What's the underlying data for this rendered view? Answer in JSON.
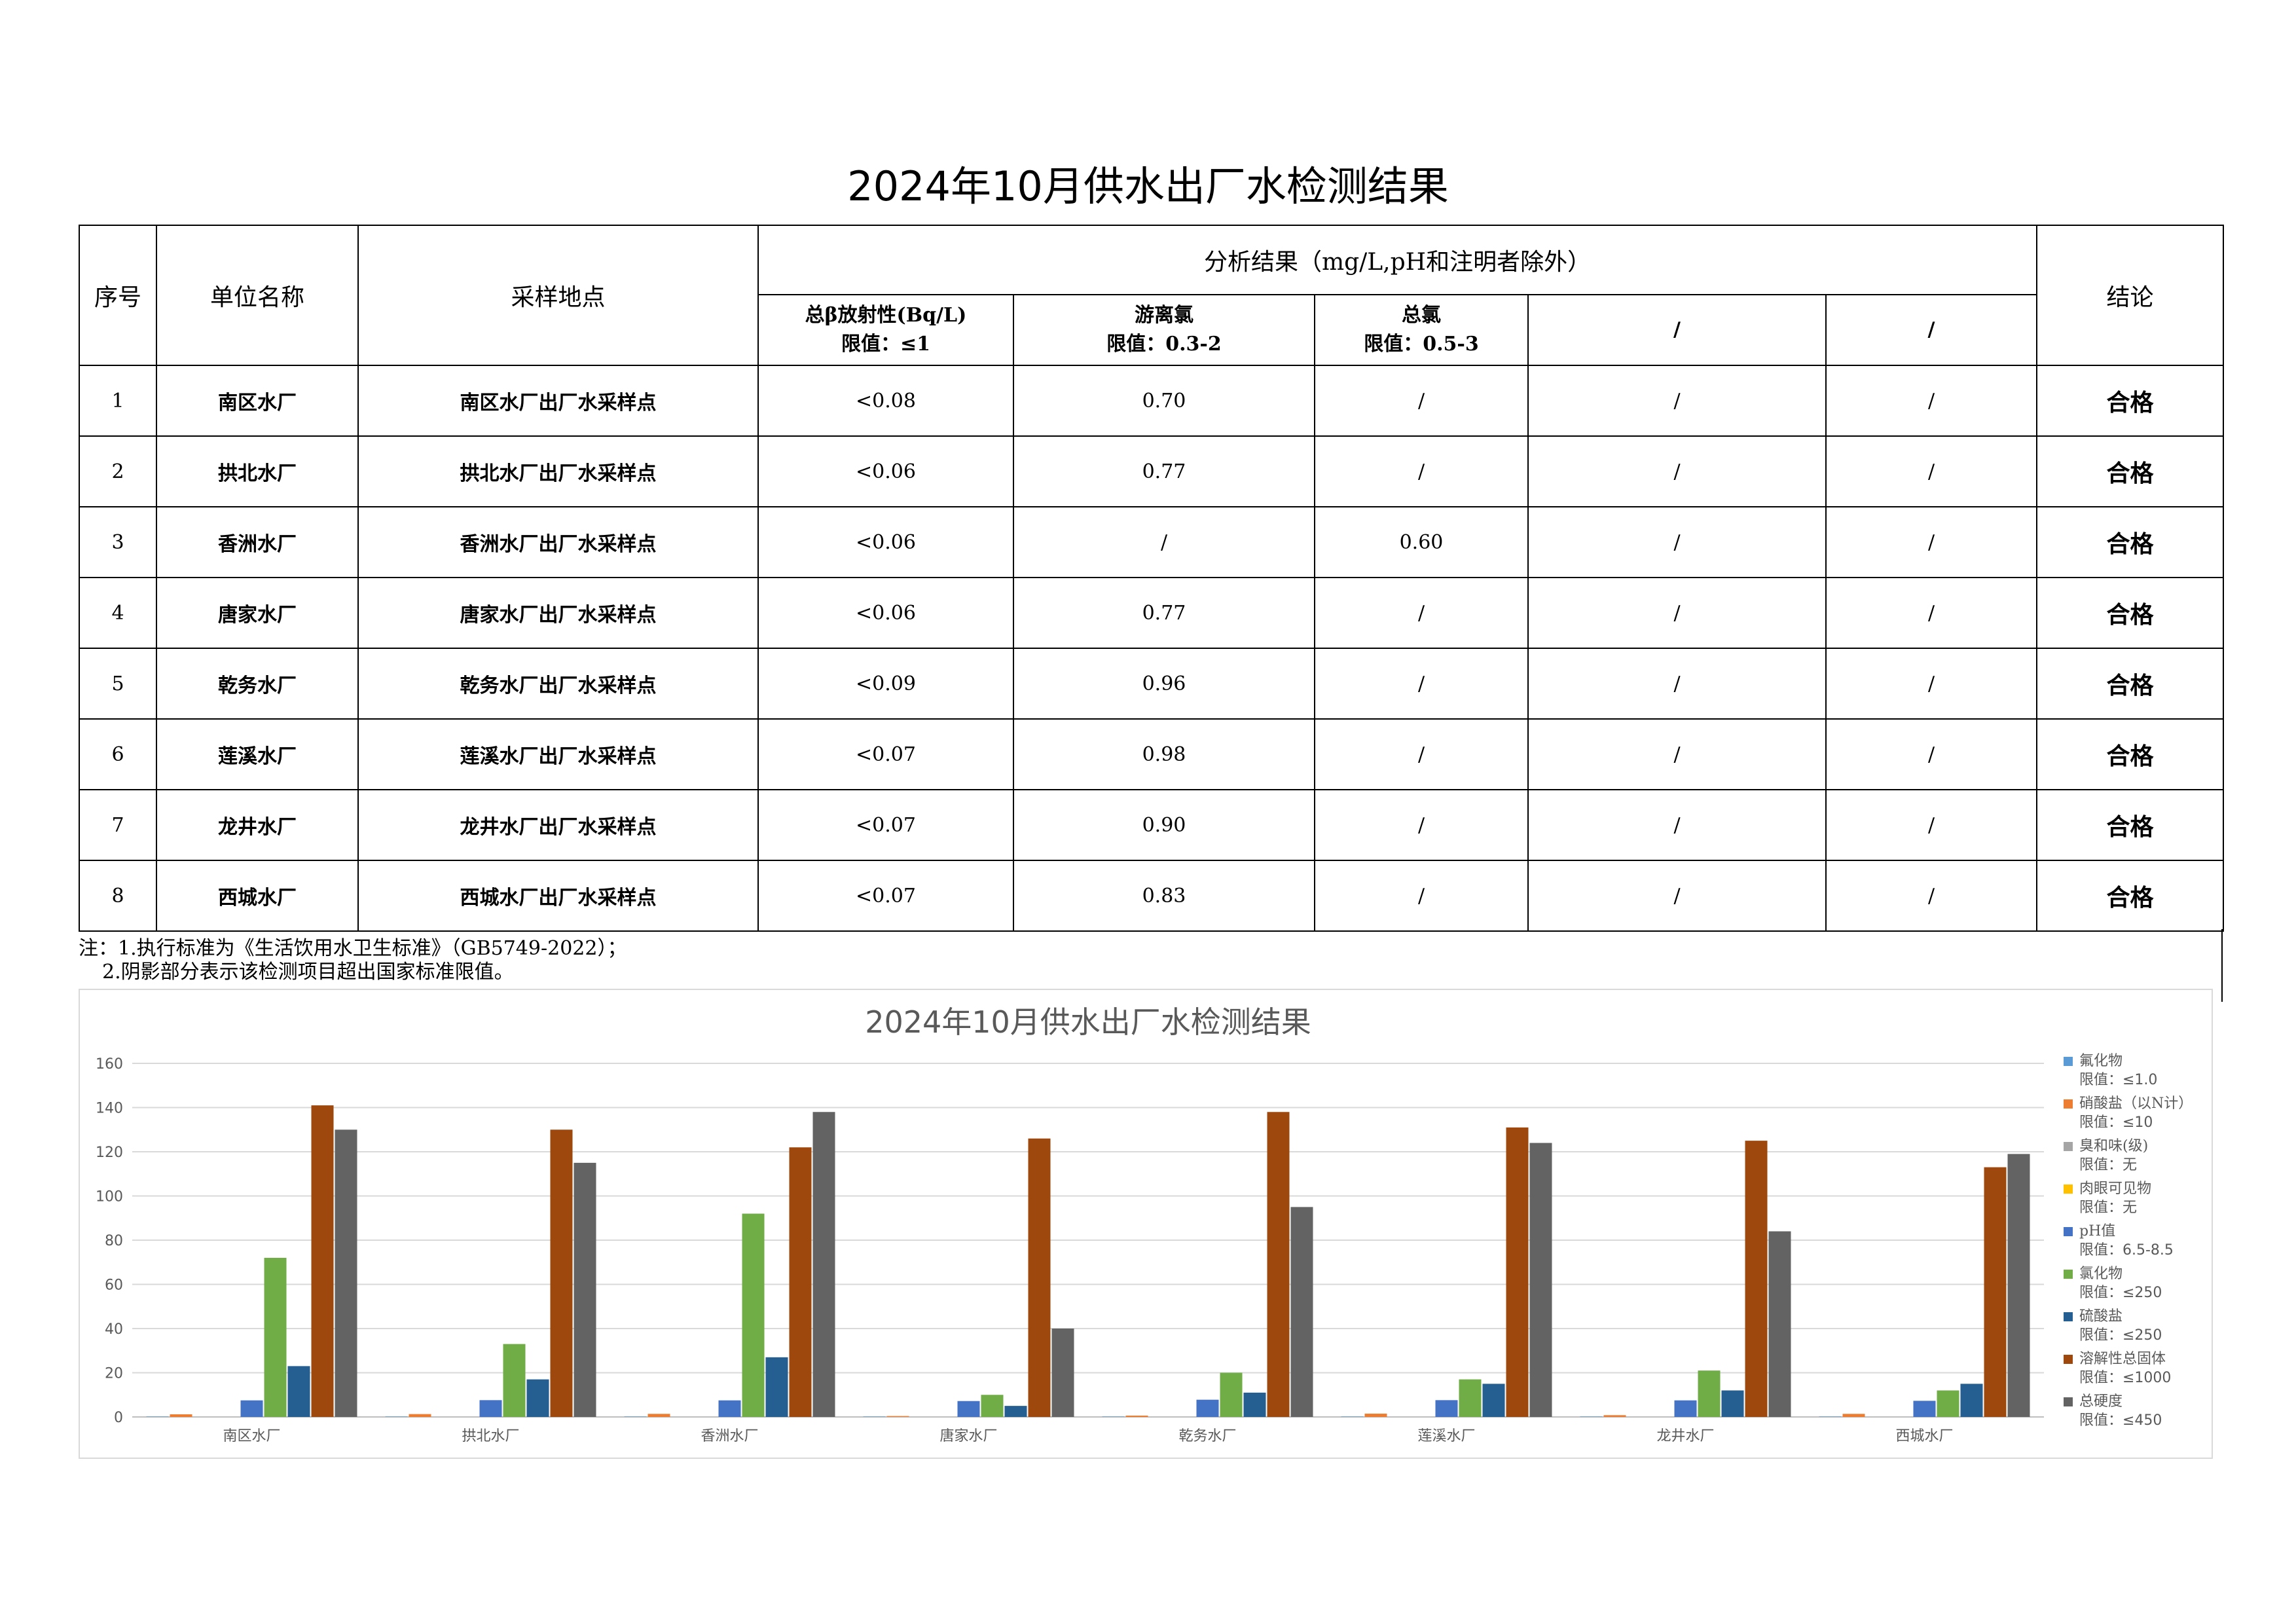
{
  "title": "2024年10月供水出厂水检测结果",
  "table": {
    "headers": {
      "seq": "序号",
      "unit": "单位名称",
      "site": "采样地点",
      "analysis": "分析结果（mg/L,pH和注明者除外）",
      "conclusion": "结论"
    },
    "sub_headers": [
      {
        "name": "总β放射性(Bq/L)",
        "limit": "限值：≤1"
      },
      {
        "name": "游离氯",
        "limit": "限值：0.3-2"
      },
      {
        "name": "总氯",
        "limit": "限值：0.5-3"
      },
      {
        "name": "/",
        "limit": ""
      },
      {
        "name": "/",
        "limit": ""
      }
    ],
    "rows": [
      {
        "seq": "1",
        "unit": "南区水厂",
        "site": "南区水厂出厂水采样点",
        "v1": "<0.08",
        "v2": "0.70",
        "v3": "/",
        "v4": "/",
        "v5": "/",
        "conclusion": "合格"
      },
      {
        "seq": "2",
        "unit": "拱北水厂",
        "site": "拱北水厂出厂水采样点",
        "v1": "<0.06",
        "v2": "0.77",
        "v3": "/",
        "v4": "/",
        "v5": "/",
        "conclusion": "合格"
      },
      {
        "seq": "3",
        "unit": "香洲水厂",
        "site": "香洲水厂出厂水采样点",
        "v1": "<0.06",
        "v2": "/",
        "v3": "0.60",
        "v4": "/",
        "v5": "/",
        "conclusion": "合格"
      },
      {
        "seq": "4",
        "unit": "唐家水厂",
        "site": "唐家水厂出厂水采样点",
        "v1": "<0.06",
        "v2": "0.77",
        "v3": "/",
        "v4": "/",
        "v5": "/",
        "conclusion": "合格"
      },
      {
        "seq": "5",
        "unit": "乾务水厂",
        "site": "乾务水厂出厂水采样点",
        "v1": "<0.09",
        "v2": "0.96",
        "v3": "/",
        "v4": "/",
        "v5": "/",
        "conclusion": "合格"
      },
      {
        "seq": "6",
        "unit": "莲溪水厂",
        "site": "莲溪水厂出厂水采样点",
        "v1": "<0.07",
        "v2": "0.98",
        "v3": "/",
        "v4": "/",
        "v5": "/",
        "conclusion": "合格"
      },
      {
        "seq": "7",
        "unit": "龙井水厂",
        "site": "龙井水厂出厂水采样点",
        "v1": "<0.07",
        "v2": "0.90",
        "v3": "/",
        "v4": "/",
        "v5": "/",
        "conclusion": "合格"
      },
      {
        "seq": "8",
        "unit": "西城水厂",
        "site": "西城水厂出厂水采样点",
        "v1": "<0.07",
        "v2": "0.83",
        "v3": "/",
        "v4": "/",
        "v5": "/",
        "conclusion": "合格"
      }
    ]
  },
  "notes": [
    "注：1.执行标准为《生活饮用水卫生标准》（GB5749-2022）；",
    "2.阴影部分表示该检测项目超出国家标准限值。"
  ],
  "chart_data": {
    "type": "bar",
    "title": "2024年10月供水出厂水检测结果",
    "categories": [
      "南区水厂",
      "拱北水厂",
      "香洲水厂",
      "唐家水厂",
      "乾务水厂",
      "莲溪水厂",
      "龙井水厂",
      "西城水厂"
    ],
    "ylim": [
      0,
      160
    ],
    "yticks": [
      0,
      20,
      40,
      60,
      80,
      100,
      120,
      140,
      160
    ],
    "grid": true,
    "legend_position": "right",
    "series": [
      {
        "name": "氟化物",
        "limit": "限值：≤1.0",
        "color": "#5b9bd5",
        "values": [
          0.2,
          0.2,
          0.2,
          0.2,
          0.2,
          0.2,
          0.2,
          0.2
        ]
      },
      {
        "name": "硝酸盐（以N计）",
        "limit": "限值：≤10",
        "color": "#ed7d31",
        "values": [
          1.2,
          1.3,
          1.4,
          0.4,
          0.6,
          1.5,
          0.8,
          1.4
        ]
      },
      {
        "name": "臭和味(级)",
        "limit": "限值：无",
        "color": "#a5a5a5",
        "values": [
          0,
          0,
          0,
          0,
          0,
          0,
          0,
          0
        ]
      },
      {
        "name": "肉眼可见物",
        "limit": "限值：无",
        "color": "#ffc000",
        "values": [
          0,
          0,
          0,
          0,
          0,
          0,
          0,
          0
        ]
      },
      {
        "name": "pH值",
        "limit": "限值：6.5-8.5",
        "color": "#4472c4",
        "values": [
          7.5,
          7.6,
          7.5,
          7.2,
          7.8,
          7.6,
          7.5,
          7.3
        ]
      },
      {
        "name": "氯化物",
        "limit": "限值：≤250",
        "color": "#70ad47",
        "values": [
          72,
          33,
          92,
          10,
          20,
          17,
          21,
          12
        ]
      },
      {
        "name": "硫酸盐",
        "limit": "限值：≤250",
        "color": "#255e91",
        "values": [
          23,
          17,
          27,
          5,
          11,
          15,
          12,
          15
        ]
      },
      {
        "name": "溶解性总固体",
        "limit": "限值：≤1000",
        "color": "#9e480e",
        "values": [
          141,
          130,
          122,
          126,
          138,
          131,
          125,
          113
        ]
      },
      {
        "name": "总硬度",
        "limit": "限值：≤450",
        "color": "#636363",
        "values": [
          130,
          115,
          138,
          40,
          95,
          124,
          84,
          119
        ]
      }
    ]
  }
}
